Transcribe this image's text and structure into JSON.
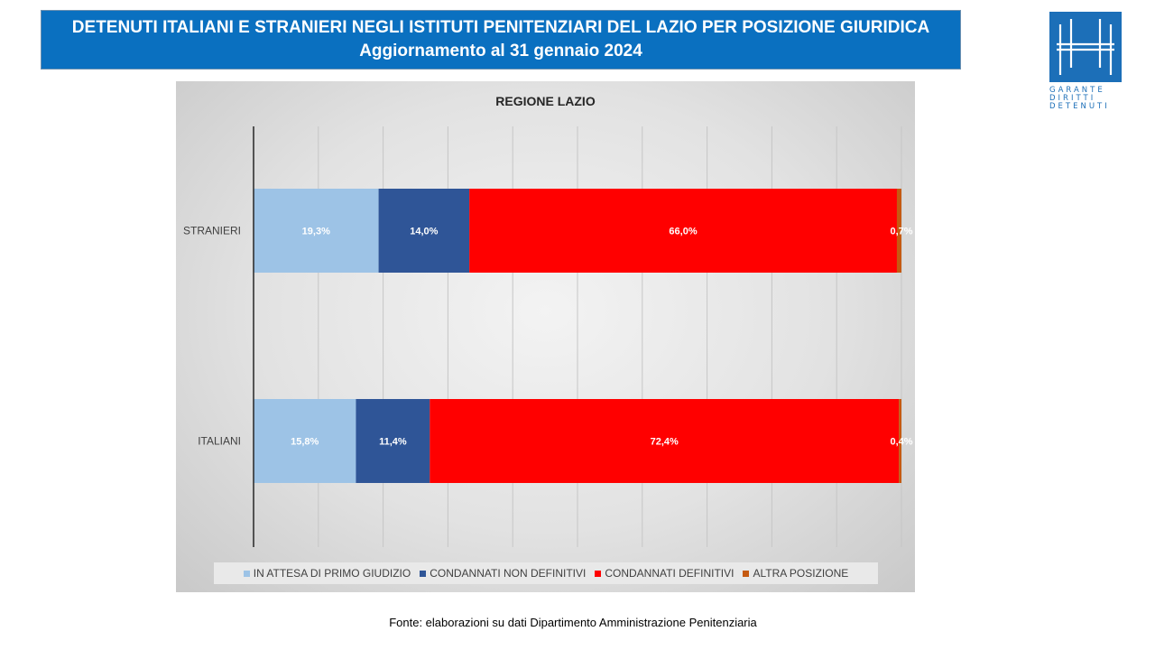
{
  "header": {
    "title_line1": "DETENUTI ITALIANI E STRANIERI NEGLI ISTITUTI PENITENZIARI DEL LAZIO PER POSIZIONE GIURIDICA",
    "title_line2": "Aggiornamento al 31 gennaio 2024"
  },
  "logo": {
    "lines": [
      "GARANTE",
      "DIRITTI",
      "DETENUTI"
    ],
    "color": "#1c6fb8"
  },
  "chart_data": {
    "type": "bar",
    "orientation": "horizontal",
    "stacked": "percent",
    "title": "REGIONE LAZIO",
    "categories": [
      "STRANIERI",
      "ITALIANI"
    ],
    "series": [
      {
        "name": "IN ATTESA DI PRIMO GIUDIZIO",
        "color": "#9dc3e6",
        "values": [
          19.3,
          15.8
        ],
        "labels": [
          "19,3%",
          "15,8%"
        ]
      },
      {
        "name": "CONDANNATI NON DEFINITIVI",
        "color": "#2f5597",
        "values": [
          14.0,
          11.4
        ],
        "labels": [
          "14,0%",
          "11,4%"
        ]
      },
      {
        "name": "CONDANNATI DEFINITIVI",
        "color": "#ff0000",
        "values": [
          66.0,
          72.4
        ],
        "labels": [
          "66,0%",
          "72,4%"
        ]
      },
      {
        "name": "ALTRA POSIZIONE",
        "color": "#c55a11",
        "values": [
          0.7,
          0.4
        ],
        "labels": [
          "0,7%",
          "0,4%"
        ]
      }
    ],
    "xlim": [
      0,
      100
    ],
    "grid": true,
    "legend_position": "bottom"
  },
  "footer": {
    "source": "Fonte: elaborazioni su dati Dipartimento Amministrazione Penitenziaria"
  }
}
